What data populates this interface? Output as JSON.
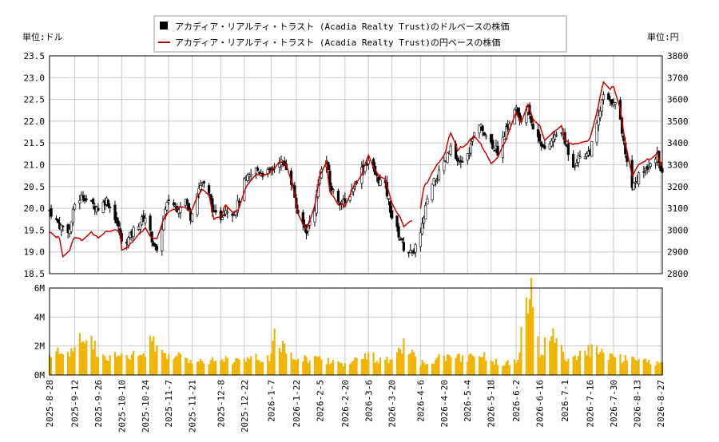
{
  "chart_data": {
    "type": "line",
    "legend": {
      "placement": "top-center",
      "entries": [
        {
          "label": "アカディア・リアルティ・トラスト (Acadia Realty Trust)のドルベースの株価",
          "color": "#000000",
          "marker": "square"
        },
        {
          "label": "アカディア・リアルティ・トラスト (Acadia Realty Trust)の円ベースの株価",
          "color": "#cc0000",
          "marker": "line"
        }
      ]
    },
    "left_unit": "単位:ドル",
    "right_unit": "単位:円",
    "grid": true,
    "y_left": {
      "range": [
        18.5,
        23.5
      ],
      "ticks": [
        "18.5",
        "19.0",
        "19.5",
        "20.0",
        "20.5",
        "21.0",
        "21.5",
        "22.0",
        "22.5",
        "23.0",
        "23.5"
      ]
    },
    "y_right": {
      "range": [
        2800,
        3800
      ],
      "ticks": [
        "2800",
        "2900",
        "3000",
        "3100",
        "3200",
        "3300",
        "3400",
        "3500",
        "3600",
        "3700",
        "3800"
      ]
    },
    "volume_axis": {
      "range": [
        0,
        6000000
      ],
      "ticks": [
        "0M",
        "2M",
        "4M",
        "6M"
      ]
    },
    "x_ticks": [
      "2025-8-28",
      "2025-9-12",
      "2025-9-26",
      "2025-10-10",
      "2025-10-24",
      "2025-11-7",
      "2025-11-21",
      "2025-12-8",
      "2025-12-22",
      "2026-1-7",
      "2026-1-22",
      "2026-2-5",
      "2026-2-20",
      "2026-3-6",
      "2026-3-20",
      "2026-4-6",
      "2026-4-20",
      "2026-5-4",
      "2026-5-18",
      "2026-6-2",
      "2026-6-16",
      "2026-7-1",
      "2026-7-16",
      "2026-7-30",
      "2026-8-13",
      "2026-8-27"
    ],
    "x_range": [
      "2025-8-28",
      "2026-8-28"
    ],
    "usd_close_keypoints": [
      [
        "2025-8-28",
        19.95
      ],
      [
        "2025-9-3",
        19.6
      ],
      [
        "2025-9-9",
        19.5
      ],
      [
        "2025-9-12",
        20.1
      ],
      [
        "2025-9-17",
        20.3
      ],
      [
        "2025-9-22",
        20.1
      ],
      [
        "2025-9-26",
        20.0
      ],
      [
        "2025-10-1",
        20.2
      ],
      [
        "2025-10-6",
        19.8
      ],
      [
        "2025-10-9",
        19.4
      ],
      [
        "2025-10-10",
        19.2
      ],
      [
        "2025-10-14",
        19.3
      ],
      [
        "2025-10-17",
        19.5
      ],
      [
        "2025-10-21",
        19.7
      ],
      [
        "2025-10-24",
        19.8
      ],
      [
        "2025-10-28",
        19.3
      ],
      [
        "2025-10-31",
        18.95
      ],
      [
        "2025-11-4",
        19.8
      ],
      [
        "2025-11-7",
        20.2
      ],
      [
        "2025-11-12",
        20.0
      ],
      [
        "2025-11-17",
        20.2
      ],
      [
        "2025-11-20",
        19.8
      ],
      [
        "2025-11-24",
        20.4
      ],
      [
        "2025-11-27",
        20.6
      ],
      [
        "2025-12-1",
        20.3
      ],
      [
        "2025-12-4",
        19.85
      ],
      [
        "2025-12-8",
        19.8
      ],
      [
        "2025-12-11",
        20.0
      ],
      [
        "2025-12-16",
        19.9
      ],
      [
        "2025-12-19",
        20.2
      ],
      [
        "2025-12-22",
        20.6
      ],
      [
        "2025-12-29",
        20.9
      ],
      [
        "2026-1-2",
        20.8
      ],
      [
        "2026-1-7",
        20.85
      ],
      [
        "2026-1-12",
        21.1
      ],
      [
        "2026-1-16",
        20.95
      ],
      [
        "2026-1-20",
        20.5
      ],
      [
        "2026-1-23",
        19.8
      ],
      [
        "2026-1-28",
        19.5
      ],
      [
        "2026-2-2",
        20.0
      ],
      [
        "2026-2-5",
        20.8
      ],
      [
        "2026-2-9",
        21.1
      ],
      [
        "2026-2-11",
        20.5
      ],
      [
        "2026-2-16",
        20.2
      ],
      [
        "2026-2-20",
        20.1
      ],
      [
        "2026-2-25",
        20.5
      ],
      [
        "2026-3-2",
        20.9
      ],
      [
        "2026-3-6",
        21.1
      ],
      [
        "2026-3-11",
        20.7
      ],
      [
        "2026-3-16",
        20.5
      ],
      [
        "2026-3-20",
        19.8
      ],
      [
        "2026-3-24",
        19.4
      ],
      [
        "2026-3-27",
        19.1
      ],
      [
        "2026-4-1",
        18.95
      ],
      [
        "2026-4-6",
        19.4
      ],
      [
        "2026-4-10",
        20.2
      ],
      [
        "2026-4-14",
        20.6
      ],
      [
        "2026-4-20",
        21.0
      ],
      [
        "2026-4-24",
        21.4
      ],
      [
        "2026-4-28",
        21.0
      ],
      [
        "2026-5-4",
        21.2
      ],
      [
        "2026-5-8",
        21.7
      ],
      [
        "2026-5-12",
        21.9
      ],
      [
        "2026-5-18",
        21.5
      ],
      [
        "2026-5-22",
        21.3
      ],
      [
        "2026-5-27",
        21.8
      ],
      [
        "2026-6-2",
        22.3
      ],
      [
        "2026-6-5",
        21.9
      ],
      [
        "2026-6-9",
        22.4
      ],
      [
        "2026-6-12",
        21.8
      ],
      [
        "2026-6-16",
        21.6
      ],
      [
        "2026-6-19",
        21.3
      ],
      [
        "2026-6-24",
        21.6
      ],
      [
        "2026-6-29",
        21.8
      ],
      [
        "2026-7-1",
        21.5
      ],
      [
        "2026-7-6",
        21.0
      ],
      [
        "2026-7-10",
        21.2
      ],
      [
        "2026-7-16",
        21.3
      ],
      [
        "2026-7-20",
        21.9
      ],
      [
        "2026-7-24",
        22.6
      ],
      [
        "2026-7-28",
        22.4
      ],
      [
        "2026-7-30",
        22.5
      ],
      [
        "2026-8-3",
        22.0
      ],
      [
        "2026-8-6",
        21.3
      ],
      [
        "2026-8-10",
        20.5
      ],
      [
        "2026-8-13",
        20.7
      ],
      [
        "2026-8-18",
        20.9
      ],
      [
        "2026-8-21",
        21.1
      ],
      [
        "2026-8-25",
        21.2
      ],
      [
        "2026-8-27",
        20.9
      ],
      [
        "2026-8-28",
        20.8
      ]
    ],
    "jpy_close_keypoints": [
      [
        "2025-8-28",
        2990
      ],
      [
        "2025-9-3",
        2960
      ],
      [
        "2025-9-5",
        2880
      ],
      [
        "2025-9-9",
        2910
      ],
      [
        "2025-9-12",
        2970
      ],
      [
        "2025-9-17",
        2950
      ],
      [
        "2025-9-22",
        2990
      ],
      [
        "2025-9-26",
        2970
      ],
      [
        "2025-10-1",
        2990
      ],
      [
        "2025-10-6",
        3000
      ],
      [
        "2025-10-9",
        2990
      ],
      [
        "2025-10-10",
        2905
      ],
      [
        "2025-10-14",
        2930
      ],
      [
        "2025-10-17",
        2950
      ],
      [
        "2025-10-21",
        2990
      ],
      [
        "2025-10-24",
        3010
      ],
      [
        "2025-10-28",
        2960
      ],
      [
        "2025-10-31",
        2960
      ],
      [
        "2025-11-4",
        3050
      ],
      [
        "2025-11-7",
        3090
      ],
      [
        "2025-11-12",
        3100
      ],
      [
        "2025-11-17",
        3110
      ],
      [
        "2025-11-20",
        3080
      ],
      [
        "2025-11-24",
        3150
      ],
      [
        "2025-11-27",
        3190
      ],
      [
        "2025-12-1",
        3160
      ],
      [
        "2025-12-4",
        3050
      ],
      [
        "2025-12-8",
        3060
      ],
      [
        "2025-12-11",
        3120
      ],
      [
        "2025-12-16",
        3080
      ],
      [
        "2025-12-19",
        3100
      ],
      [
        "2025-12-22",
        3180
      ],
      [
        "2025-12-29",
        3260
      ],
      [
        "2026-1-2",
        3250
      ],
      [
        "2026-1-7",
        3270
      ],
      [
        "2026-1-12",
        3320
      ],
      [
        "2026-1-16",
        3300
      ],
      [
        "2026-1-20",
        3200
      ],
      [
        "2026-1-23",
        3080
      ],
      [
        "2026-1-28",
        3000
      ],
      [
        "2026-2-2",
        3110
      ],
      [
        "2026-2-5",
        3250
      ],
      [
        "2026-2-9",
        3310
      ],
      [
        "2026-2-11",
        3180
      ],
      [
        "2026-2-16",
        3120
      ],
      [
        "2026-2-20",
        3110
      ],
      [
        "2026-2-25",
        3200
      ],
      [
        "2026-3-2",
        3260
      ],
      [
        "2026-3-6",
        3340
      ],
      [
        "2026-3-11",
        3260
      ],
      [
        "2026-3-16",
        3230
      ],
      [
        "2026-3-20",
        3120
      ],
      [
        "2026-3-24",
        3070
      ],
      [
        "2026-3-27",
        3020
      ],
      [
        "2026-4-1",
        3040
      ],
      [
        "2026-4-6",
        3100
      ],
      [
        "2026-4-8",
        3200
      ],
      [
        "2026-4-10",
        3220
      ],
      [
        "2026-4-14",
        3280
      ],
      [
        "2026-4-20",
        3340
      ],
      [
        "2026-4-24",
        3450
      ],
      [
        "2026-4-28",
        3370
      ],
      [
        "2026-5-4",
        3400
      ],
      [
        "2026-5-8",
        3430
      ],
      [
        "2026-5-12",
        3390
      ],
      [
        "2026-5-18",
        3310
      ],
      [
        "2026-5-22",
        3330
      ],
      [
        "2026-5-27",
        3420
      ],
      [
        "2026-6-2",
        3540
      ],
      [
        "2026-6-5",
        3500
      ],
      [
        "2026-6-9",
        3580
      ],
      [
        "2026-6-12",
        3510
      ],
      [
        "2026-6-16",
        3480
      ],
      [
        "2026-6-19",
        3410
      ],
      [
        "2026-6-24",
        3450
      ],
      [
        "2026-6-29",
        3480
      ],
      [
        "2026-7-1",
        3420
      ],
      [
        "2026-7-6",
        3390
      ],
      [
        "2026-7-10",
        3400
      ],
      [
        "2026-7-16",
        3420
      ],
      [
        "2026-7-20",
        3540
      ],
      [
        "2026-7-24",
        3680
      ],
      [
        "2026-7-28",
        3650
      ],
      [
        "2026-7-30",
        3660
      ],
      [
        "2026-8-3",
        3550
      ],
      [
        "2026-8-6",
        3400
      ],
      [
        "2026-8-10",
        3250
      ],
      [
        "2026-8-13",
        3290
      ],
      [
        "2026-8-18",
        3320
      ],
      [
        "2026-8-21",
        3330
      ],
      [
        "2026-8-25",
        3350
      ],
      [
        "2026-8-27",
        3300
      ],
      [
        "2026-8-28",
        3310
      ]
    ],
    "volume_keypoints": [
      [
        "2025-8-28",
        1400000
      ],
      [
        "2025-9-12",
        1700000
      ],
      [
        "2025-9-19",
        3100000
      ],
      [
        "2025-9-26",
        1500000
      ],
      [
        "2025-10-10",
        1200000
      ],
      [
        "2025-10-24",
        1500000
      ],
      [
        "2025-10-27",
        2300000
      ],
      [
        "2025-11-7",
        1400000
      ],
      [
        "2025-11-21",
        1000000
      ],
      [
        "2025-12-8",
        1100000
      ],
      [
        "2025-12-22",
        1000000
      ],
      [
        "2026-1-7",
        1300000
      ],
      [
        "2026-1-9",
        2500000
      ],
      [
        "2026-1-22",
        1200000
      ],
      [
        "2026-2-5",
        1100000
      ],
      [
        "2026-2-20",
        800000
      ],
      [
        "2026-3-6",
        1300000
      ],
      [
        "2026-3-20",
        900000
      ],
      [
        "2026-3-27",
        2000000
      ],
      [
        "2026-4-6",
        800000
      ],
      [
        "2026-4-20",
        1200000
      ],
      [
        "2026-5-4",
        1200000
      ],
      [
        "2026-5-8",
        1700000
      ],
      [
        "2026-5-18",
        900000
      ],
      [
        "2026-6-2",
        900000
      ],
      [
        "2026-6-11",
        6100000
      ],
      [
        "2026-6-16",
        1300000
      ],
      [
        "2026-6-24",
        3200000
      ],
      [
        "2026-7-1",
        1000000
      ],
      [
        "2026-7-16",
        1700000
      ],
      [
        "2026-7-30",
        1200000
      ],
      [
        "2026-8-13",
        1000000
      ],
      [
        "2026-8-27",
        800000
      ]
    ]
  }
}
